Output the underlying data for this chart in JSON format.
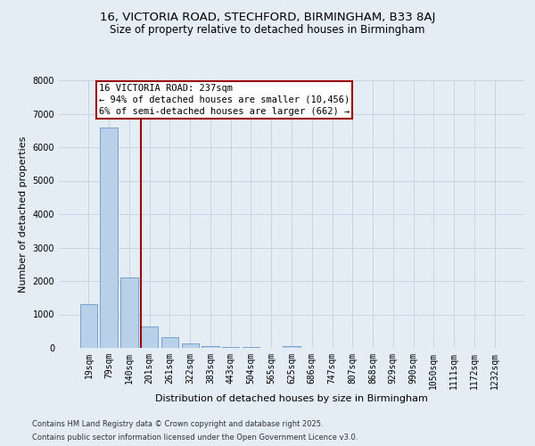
{
  "title_line1": "16, VICTORIA ROAD, STECHFORD, BIRMINGHAM, B33 8AJ",
  "title_line2": "Size of property relative to detached houses in Birmingham",
  "xlabel": "Distribution of detached houses by size in Birmingham",
  "ylabel": "Number of detached properties",
  "categories": [
    "19sqm",
    "79sqm",
    "140sqm",
    "201sqm",
    "261sqm",
    "322sqm",
    "383sqm",
    "443sqm",
    "504sqm",
    "565sqm",
    "625sqm",
    "686sqm",
    "747sqm",
    "807sqm",
    "868sqm",
    "929sqm",
    "990sqm",
    "1050sqm",
    "1111sqm",
    "1172sqm",
    "1232sqm"
  ],
  "values": [
    1300,
    6600,
    2100,
    650,
    310,
    130,
    60,
    35,
    20,
    10,
    60,
    0,
    0,
    0,
    0,
    0,
    0,
    0,
    0,
    0,
    0
  ],
  "bar_color": "#b8d0e8",
  "bar_edge_color": "#6898c8",
  "vline_color": "#990000",
  "vline_x_index": 3,
  "annotation_text": "16 VICTORIA ROAD: 237sqm\n← 94% of detached houses are smaller (10,456)\n6% of semi-detached houses are larger (662) →",
  "annotation_box_color": "#ffffff",
  "annotation_box_edge": "#990000",
  "ylim_max": 8000,
  "yticks": [
    0,
    1000,
    2000,
    3000,
    4000,
    5000,
    6000,
    7000,
    8000
  ],
  "grid_color": "#c8d4e4",
  "background_color": "#e4ecf4",
  "footer_line1": "Contains HM Land Registry data © Crown copyright and database right 2025.",
  "footer_line2": "Contains public sector information licensed under the Open Government Licence v3.0.",
  "title_fontsize": 9.5,
  "subtitle_fontsize": 8.5,
  "axis_label_fontsize": 8,
  "tick_fontsize": 7,
  "annot_fontsize": 7.5,
  "footer_fontsize": 6
}
